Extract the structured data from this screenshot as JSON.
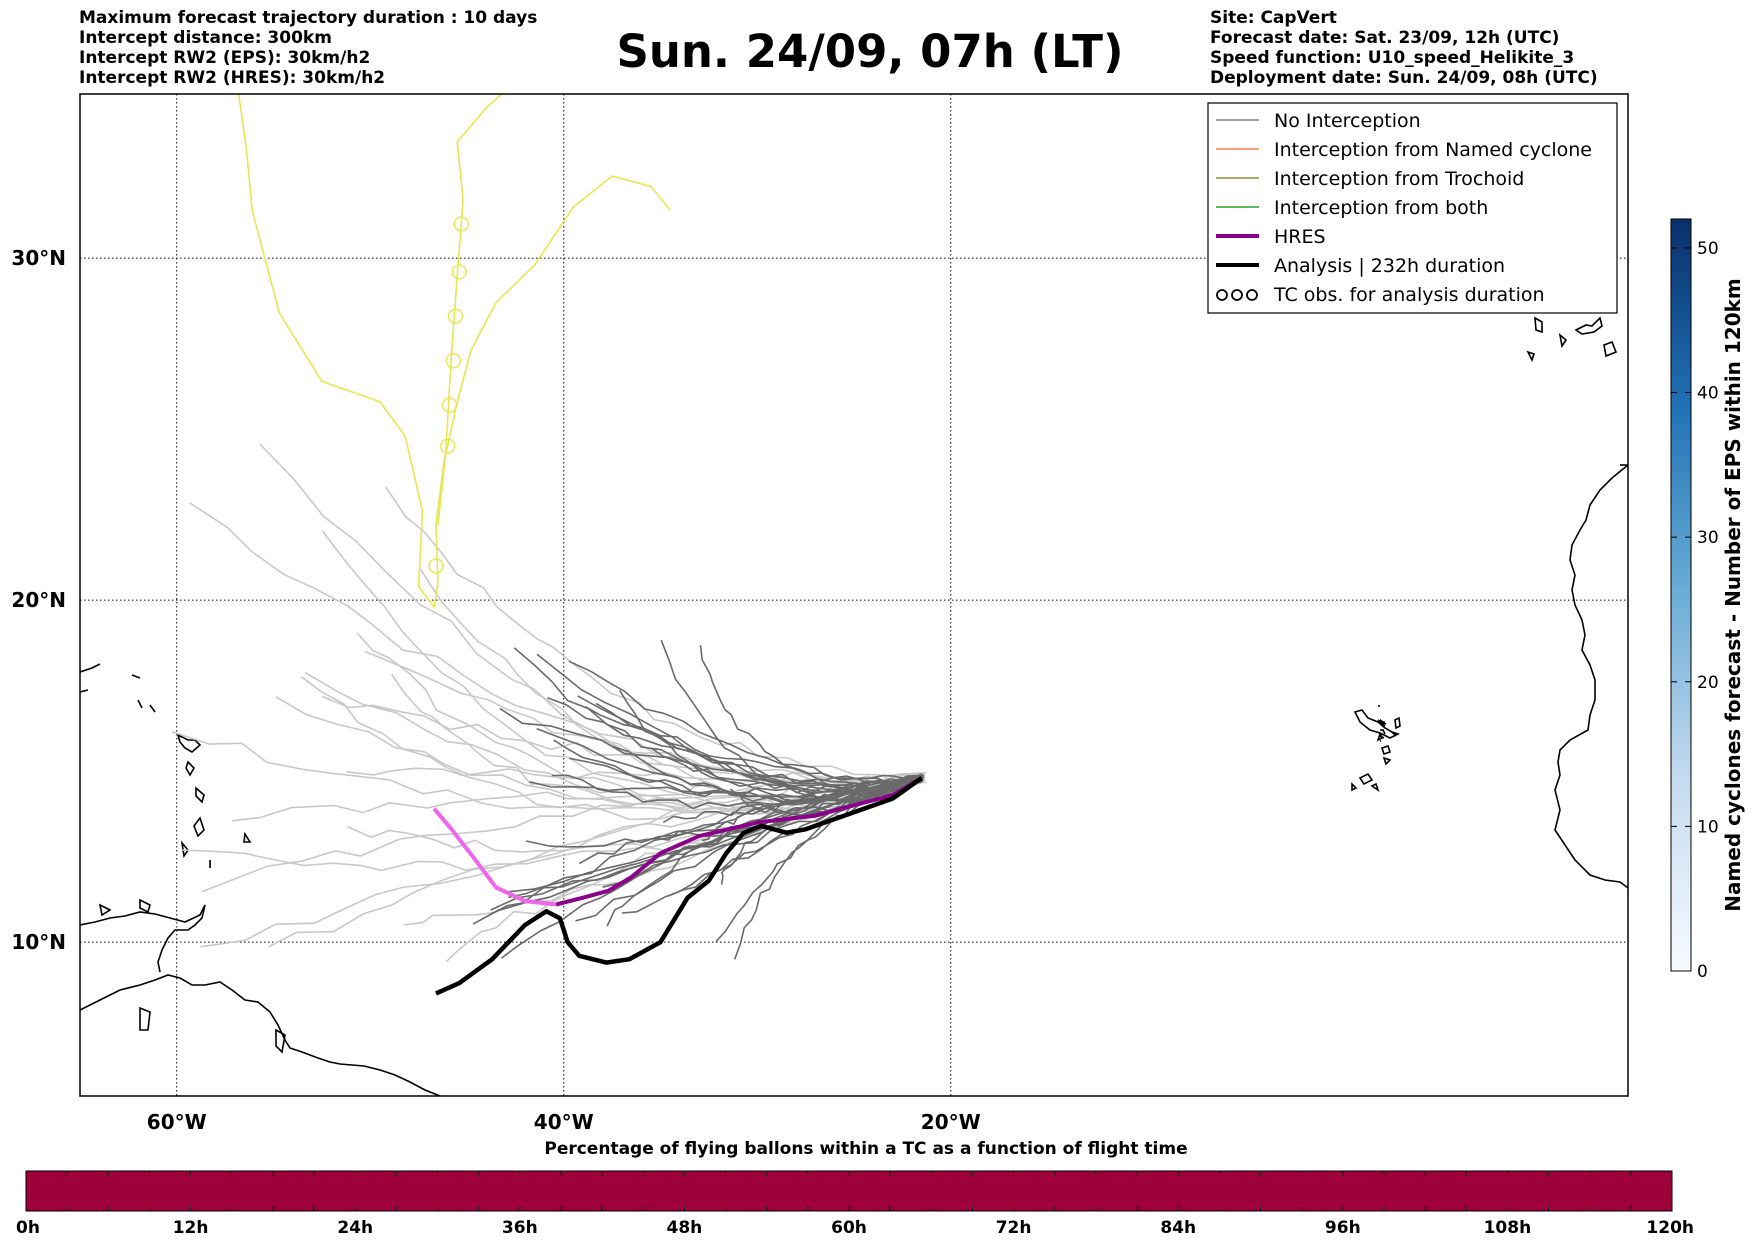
{
  "header": {
    "left_lines": [
      "Maximum forecast trajectory duration : 10 days",
      "Intercept distance: 300km",
      "Intercept RW2 (EPS):  30km/h2",
      "Intercept RW2 (HRES): 30km/h2"
    ],
    "title": "Sun. 24/09, 07h (LT)",
    "right_lines": [
      "Site: CapVert",
      "Forecast date: Sat. 23/09, 12h (UTC)",
      "Speed function: U10_speed_Helikite_3",
      "Deployment date: Sun. 24/09, 08h (UTC)"
    ]
  },
  "map": {
    "lon_range": [
      -65,
      15
    ],
    "lat_range": [
      5.5,
      34.8
    ],
    "lon_ticks": [
      {
        "value": -60,
        "label": "60°W"
      },
      {
        "value": -40,
        "label": "40°W"
      },
      {
        "value": -20,
        "label": "20°W"
      }
    ],
    "lat_ticks": [
      {
        "value": 10,
        "label": "10°N"
      },
      {
        "value": 20,
        "label": "20°N"
      },
      {
        "value": 30,
        "label": "30°N"
      }
    ],
    "grid": "dotted"
  },
  "legend": {
    "placement": "top-right",
    "items": [
      {
        "label": "No Interception",
        "color": "#808080",
        "style": "thin"
      },
      {
        "label": "Interception from Named cyclone",
        "color": "#ff7f50",
        "style": "thin"
      },
      {
        "label": "Interception from Trochoid",
        "color": "#8b8b3a",
        "style": "thin"
      },
      {
        "label": "Interception from both",
        "color": "#2ca02c",
        "style": "thin"
      },
      {
        "label": "HRES",
        "color": "#8b008b",
        "style": "thick"
      },
      {
        "label": "Analysis | 232h duration",
        "color": "#000000",
        "style": "thick"
      },
      {
        "label": "TC obs. for analysis duration",
        "color": "#000000",
        "style": "loops"
      }
    ]
  },
  "colorbar_right": {
    "label": "Named cyclones forecast - Number of EPS within 120km",
    "ticks": [
      "0",
      "10",
      "20",
      "30",
      "40",
      "50"
    ],
    "range": [
      0,
      52
    ],
    "cmap": "Blues"
  },
  "colorbar_bottom": {
    "title": "Percentage of flying ballons within a TC as a function of flight time",
    "ticks": [
      "0h",
      "12h",
      "24h",
      "36h",
      "48h",
      "60h",
      "72h",
      "84h",
      "96h",
      "108h",
      "120h"
    ],
    "fill_color": "#9e003a"
  },
  "tracks": {
    "hres": {
      "color_forecast": "#8b008b",
      "color_extended": "#ee66ee",
      "points": [
        [
          -21.5,
          14.8
        ],
        [
          -23,
          14.3
        ],
        [
          -25,
          14.0
        ],
        [
          -27,
          13.7
        ],
        [
          -30,
          13.5
        ],
        [
          -33,
          13.1
        ],
        [
          -35,
          12.6
        ],
        [
          -36.5,
          11.9
        ],
        [
          -37.7,
          11.5
        ],
        [
          -39,
          11.3
        ],
        [
          -40.4,
          11.1
        ],
        [
          -42,
          11.2
        ],
        [
          -43.5,
          11.6
        ],
        [
          -44.7,
          12.5
        ],
        [
          -45.8,
          13.3
        ],
        [
          -46.7,
          13.9
        ]
      ]
    },
    "analysis": {
      "color": "#000000",
      "points": [
        [
          -21.5,
          14.8
        ],
        [
          -23,
          14.2
        ],
        [
          -25,
          13.8
        ],
        [
          -27.5,
          13.3
        ],
        [
          -28.5,
          13.2
        ],
        [
          -29.8,
          13.4
        ],
        [
          -30.7,
          13.2
        ],
        [
          -31.6,
          12.6
        ],
        [
          -32.5,
          11.8
        ],
        [
          -33.6,
          11.3
        ],
        [
          -35,
          10.0
        ],
        [
          -36.6,
          9.5
        ],
        [
          -37.8,
          9.4
        ],
        [
          -39.2,
          9.6
        ],
        [
          -39.8,
          10.0
        ],
        [
          -40.2,
          10.7
        ],
        [
          -40.9,
          10.9
        ],
        [
          -42,
          10.5
        ],
        [
          -43.7,
          9.5
        ],
        [
          -45.4,
          8.8
        ],
        [
          -46.6,
          8.5
        ]
      ]
    },
    "trochoid": {
      "color": "#e8e650",
      "points": [
        [
          -34.5,
          31.4
        ],
        [
          -35.5,
          32.1
        ],
        [
          -37.5,
          32.4
        ],
        [
          -39.5,
          31.5
        ],
        [
          -41.5,
          29.8
        ],
        [
          -43.5,
          28.7
        ],
        [
          -44.8,
          27.3
        ],
        [
          -45.5,
          25.8
        ],
        [
          -46.2,
          24.0
        ],
        [
          -46.6,
          22.2
        ],
        [
          -46.5,
          20.5
        ],
        [
          -46.7,
          19.8
        ],
        [
          -47.5,
          20.4
        ],
        [
          -47.3,
          22.6
        ],
        [
          -48.2,
          24.8
        ],
        [
          -49.5,
          25.8
        ],
        [
          -52.5,
          26.4
        ],
        [
          -54.7,
          28.4
        ],
        [
          -56.1,
          31.4
        ],
        [
          -56.4,
          33.2
        ],
        [
          -56.8,
          34.8
        ]
      ]
    },
    "trochoid_branch": {
      "points": [
        [
          -46.5,
          22.2
        ],
        [
          -46.1,
          24.3
        ],
        [
          -45.8,
          27.2
        ],
        [
          -45.5,
          29.5
        ],
        [
          -45.2,
          31.7
        ],
        [
          -45.5,
          33.4
        ],
        [
          -44.0,
          34.4
        ],
        [
          -43.2,
          34.8
        ]
      ]
    },
    "ensemble_color_near": "#6a6a6a",
    "ensemble_color_far": "#c8c8c8"
  }
}
